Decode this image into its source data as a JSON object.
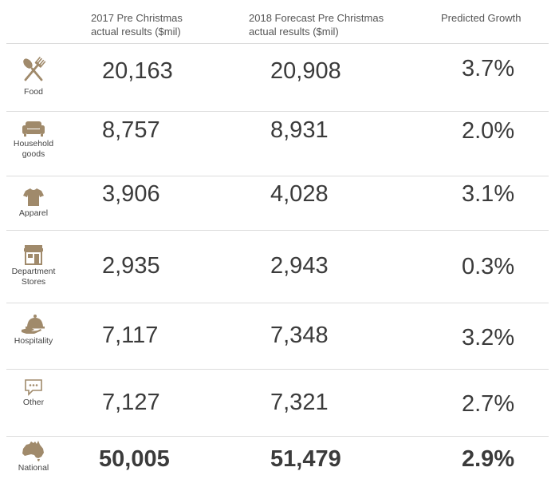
{
  "chart_data": {
    "type": "table",
    "columns": [
      "2017  Pre Christmas actual results ($mil)",
      "2018 Forecast Pre Christmas actual results ($mil)",
      "Predicted Growth"
    ],
    "rows": [
      {
        "category": "Food",
        "icon": "cutlery-icon",
        "v2017": "20,163",
        "v2018": "20,908",
        "growth": "3.7%"
      },
      {
        "category": "Household goods",
        "icon": "sofa-icon",
        "v2017": "8,757",
        "v2018": "8,931",
        "growth": "2.0%"
      },
      {
        "category": "Apparel",
        "icon": "tshirt-icon",
        "v2017": "3,906",
        "v2018": "4,028",
        "growth": "3.1%"
      },
      {
        "category": "Department Stores",
        "icon": "storefront-icon",
        "v2017": "2,935",
        "v2018": "2,943",
        "growth": "0.3%"
      },
      {
        "category": "Hospitality",
        "icon": "service-bell-icon",
        "v2017": "7,117",
        "v2018": "7,348",
        "growth": "3.2%"
      },
      {
        "category": "Other",
        "icon": "speech-bubble-icon",
        "v2017": "7,127",
        "v2018": "7,321",
        "growth": "2.7%"
      },
      {
        "category": "National",
        "icon": "australia-map-icon",
        "v2017": "50,005",
        "v2018": "51,479",
        "growth": "2.9%",
        "bold": true
      }
    ],
    "accent_color": "#a08a6b"
  },
  "header": {
    "col2017_line1": "2017  Pre Christmas",
    "col2017_line2": "actual results ($mil)",
    "col2018_line1": "2018 Forecast Pre Christmas",
    "col2018_line2": "actual results ($mil)",
    "growth": "Predicted Growth"
  },
  "labels": {
    "food": "Food",
    "household_1": "Household",
    "household_2": "goods",
    "apparel": "Apparel",
    "dept_1": "Department",
    "dept_2": "Stores",
    "hospitality": "Hospitality",
    "other": "Other",
    "national": "National"
  }
}
